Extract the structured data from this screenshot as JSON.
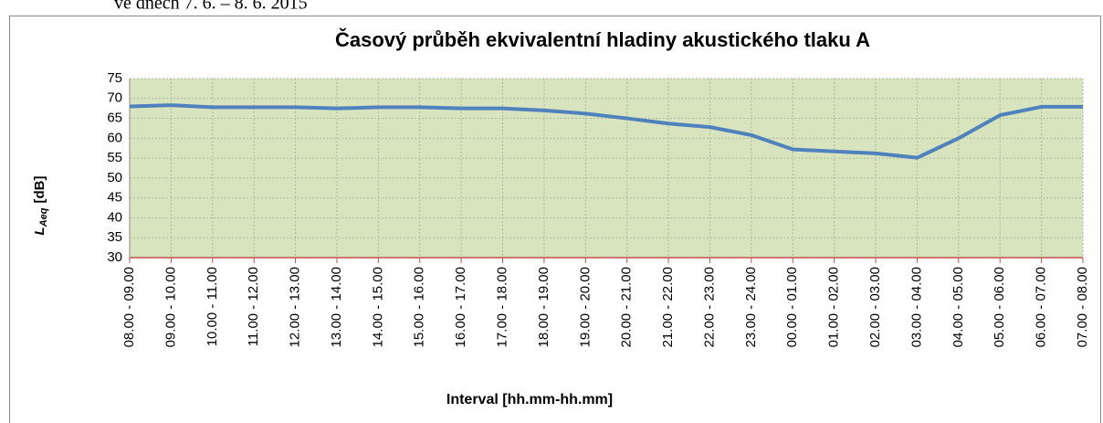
{
  "caption": "ve dnech 7. 6. – 8. 6. 2015",
  "chart_data": {
    "type": "line",
    "title": "Časový průběh ekvivalentní hladiny akustického tlaku A",
    "xlabel": "Interval [hh.mm-hh.mm]",
    "ylabel": "L",
    "ylabel_subscript": "Aeq",
    "ylabel_unit": "[dB]",
    "categories": [
      "08.00 - 09.00",
      "09.00 - 10.00",
      "10.00 - 11.00",
      "11.00 - 12.00",
      "12.00 - 13.00",
      "13.00 - 14.00",
      "14.00 - 15.00",
      "15.00 - 16.00",
      "16.00 - 17.00",
      "17.00 - 18.00",
      "18.00 - 19.00",
      "19.00 - 20.00",
      "20.00 - 21.00",
      "21.00 - 22.00",
      "22.00 - 23.00",
      "23.00 - 24.00",
      "00.00 - 01.00",
      "01.00 - 02.00",
      "02.00 - 03.00",
      "03.00 - 04.00",
      "04.00 - 05.00",
      "05.00 - 06.00",
      "06.00 - 07.00",
      "07.00 - 08.00"
    ],
    "values": [
      68,
      68.3,
      67.8,
      67.8,
      67.8,
      67.5,
      67.8,
      67.8,
      67.5,
      67.5,
      67,
      66.2,
      65,
      63.7,
      62.8,
      60.8,
      57.2,
      56.7,
      56.2,
      55.1,
      60,
      65.8,
      67.9,
      67.9
    ],
    "color": "#4f81bd",
    "ylim": [
      30,
      75
    ],
    "yticks": [
      30,
      35,
      40,
      45,
      50,
      55,
      60,
      65,
      70,
      75
    ],
    "grid": true
  }
}
